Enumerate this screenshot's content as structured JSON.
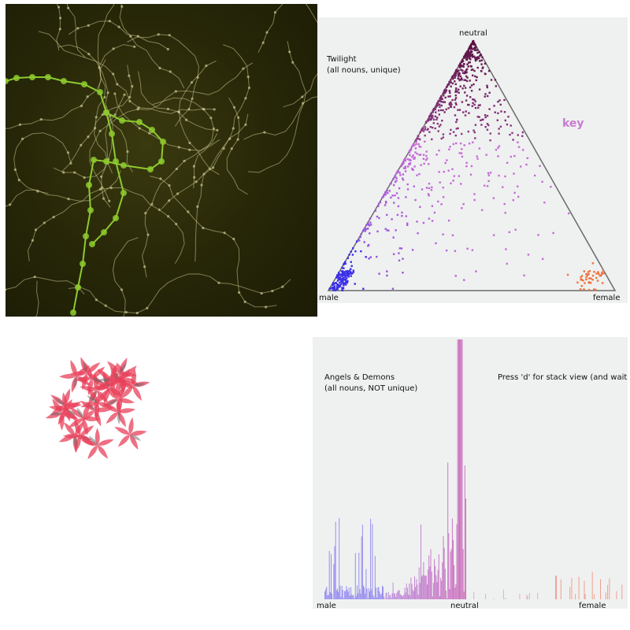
{
  "ternary": {
    "title": "Twilight",
    "subtitle": "(all nouns, unique)",
    "key_label": "key",
    "corner_top": "neutral",
    "corner_left": "male",
    "corner_right": "female"
  },
  "histogram": {
    "title": "Angels & Demons",
    "subtitle": "(all nouns, NOT unique)",
    "hint": "Press 'd' for stack view (and wait)",
    "axis_left": "male",
    "axis_mid": "neutral",
    "axis_right": "female"
  },
  "colors": {
    "male": "#3a2ee8",
    "neutral": "#5a1040",
    "female": "#f0703a",
    "mixed": "#c86ad8",
    "network_line": "#c8c890",
    "network_highlight": "#8ecb2e",
    "flower": "#e8405a"
  }
}
